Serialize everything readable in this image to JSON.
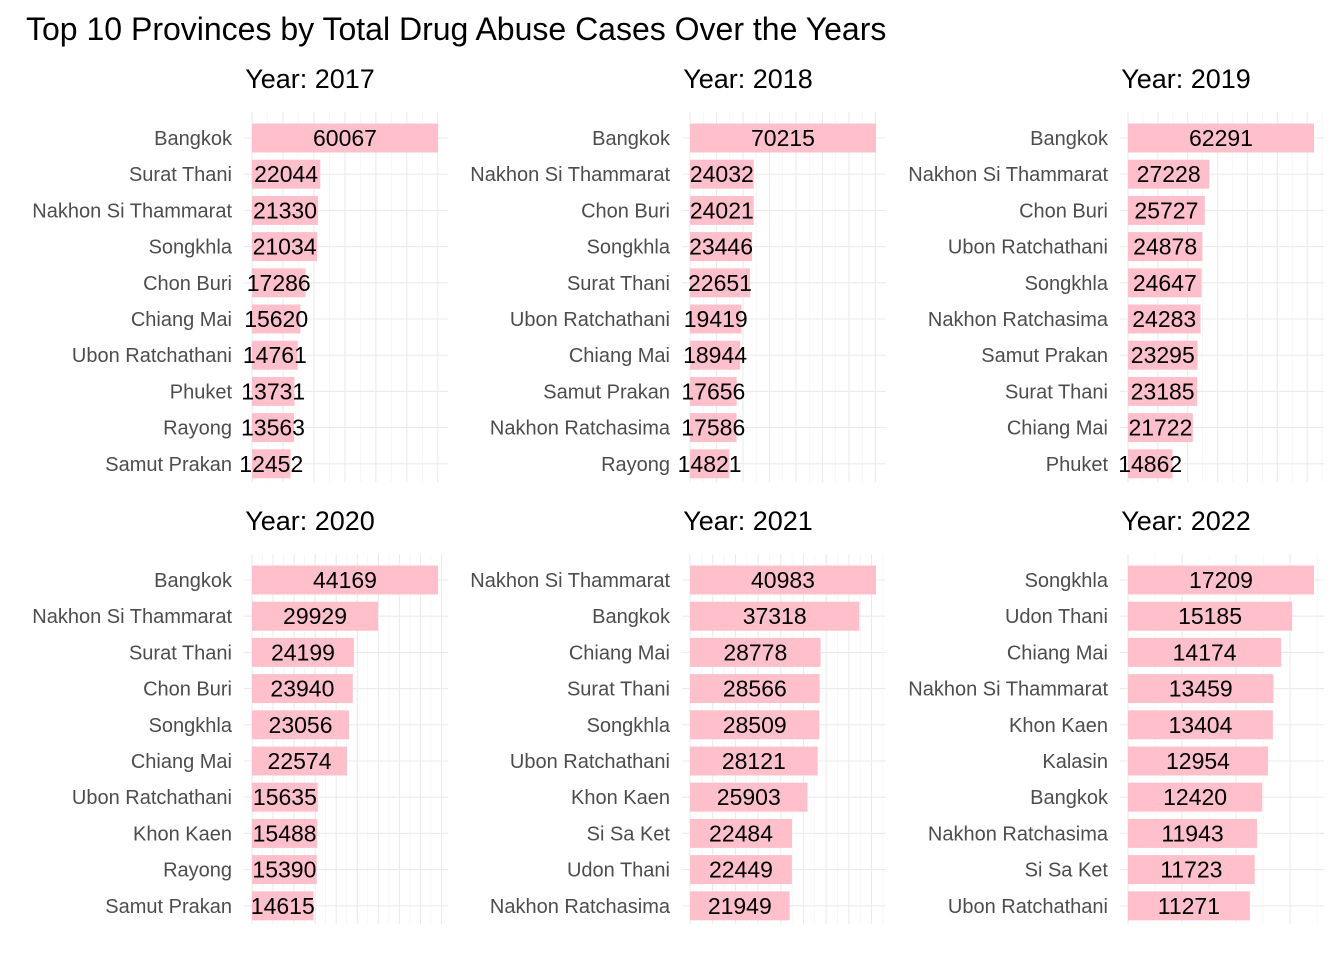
{
  "chart_data": {
    "type": "bar",
    "orientation": "horizontal",
    "title": "Top 10 Provinces by Total Drug Abuse Cases Over the Years",
    "bar_color": "#FFC0CB",
    "grid": true,
    "facet_layout": "2x3",
    "panels": [
      {
        "strip": "Year: 2017",
        "categories": [
          "Bangkok",
          "Surat Thani",
          "Nakhon Si Thammarat",
          "Songkhla",
          "Chon Buri",
          "Chiang Mai",
          "Ubon Ratchathani",
          "Phuket",
          "Rayong",
          "Samut Prakan"
        ],
        "values": [
          60067,
          22044,
          21330,
          21034,
          17286,
          15620,
          14761,
          13731,
          13563,
          12452
        ]
      },
      {
        "strip": "Year: 2018",
        "categories": [
          "Bangkok",
          "Nakhon Si Thammarat",
          "Chon Buri",
          "Songkhla",
          "Surat Thani",
          "Ubon Ratchathani",
          "Chiang Mai",
          "Samut Prakan",
          "Nakhon Ratchasima",
          "Rayong"
        ],
        "values": [
          70215,
          24032,
          24021,
          23446,
          22651,
          19419,
          18944,
          17656,
          17586,
          14821
        ]
      },
      {
        "strip": "Year: 2019",
        "categories": [
          "Bangkok",
          "Nakhon Si Thammarat",
          "Chon Buri",
          "Ubon Ratchathani",
          "Songkhla",
          "Nakhon Ratchasima",
          "Samut Prakan",
          "Surat Thani",
          "Chiang Mai",
          "Phuket"
        ],
        "values": [
          62291,
          27228,
          25727,
          24878,
          24647,
          24283,
          23295,
          23185,
          21722,
          14862
        ]
      },
      {
        "strip": "Year: 2020",
        "categories": [
          "Bangkok",
          "Nakhon Si Thammarat",
          "Surat Thani",
          "Chon Buri",
          "Songkhla",
          "Chiang Mai",
          "Ubon Ratchathani",
          "Khon Kaen",
          "Rayong",
          "Samut Prakan"
        ],
        "values": [
          44169,
          29929,
          24199,
          23940,
          23056,
          22574,
          15635,
          15488,
          15390,
          14615
        ]
      },
      {
        "strip": "Year: 2021",
        "categories": [
          "Nakhon Si Thammarat",
          "Bangkok",
          "Chiang Mai",
          "Surat Thani",
          "Songkhla",
          "Ubon Ratchathani",
          "Khon Kaen",
          "Si Sa Ket",
          "Udon Thani",
          "Nakhon Ratchasima"
        ],
        "values": [
          40983,
          37318,
          28778,
          28566,
          28509,
          28121,
          25903,
          22484,
          22449,
          21949
        ]
      },
      {
        "strip": "Year: 2022",
        "categories": [
          "Songkhla",
          "Udon Thani",
          "Chiang Mai",
          "Nakhon Si Thammarat",
          "Khon Kaen",
          "Kalasin",
          "Bangkok",
          "Nakhon Ratchasima",
          "Si Sa Ket",
          "Ubon Ratchathani"
        ],
        "values": [
          17209,
          15185,
          14174,
          13459,
          13404,
          12954,
          12420,
          11943,
          11723,
          11271
        ]
      }
    ]
  }
}
